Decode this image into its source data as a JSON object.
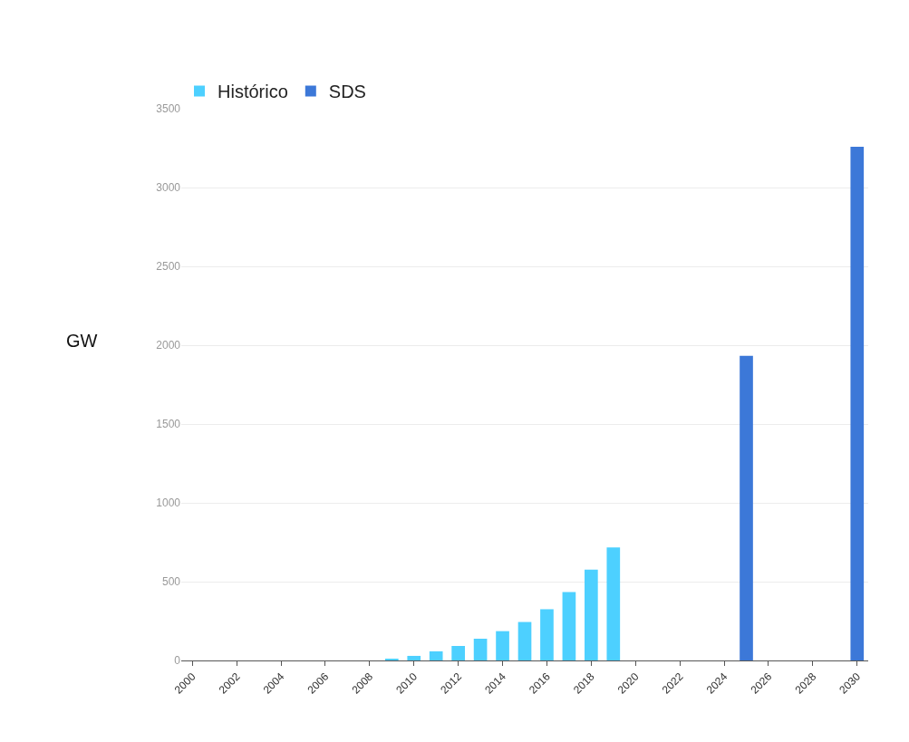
{
  "chart_data": {
    "type": "bar",
    "ylabel": "GW",
    "series": [
      {
        "name": "Histórico",
        "color": "#4dd0ff",
        "x": [
          2009,
          2010,
          2011,
          2012,
          2013,
          2014,
          2015,
          2016,
          2017,
          2018,
          2019
        ],
        "values": [
          10,
          29,
          58,
          92,
          138,
          186,
          244,
          325,
          434,
          576,
          717
        ]
      },
      {
        "name": "SDS",
        "color": "#3c78d8",
        "x": [
          2025,
          2030
        ],
        "values": [
          1932,
          3258
        ]
      }
    ],
    "xlim": [
      1999.5,
      2030.5
    ],
    "xticks": [
      2000,
      2002,
      2004,
      2006,
      2008,
      2010,
      2012,
      2014,
      2016,
      2018,
      2020,
      2022,
      2024,
      2026,
      2028,
      2030
    ],
    "ylim": [
      0,
      3500
    ],
    "yticks": [
      0,
      500,
      1000,
      1500,
      2000,
      2500,
      3000,
      3500
    ],
    "grid": "y",
    "legend": "top left"
  }
}
